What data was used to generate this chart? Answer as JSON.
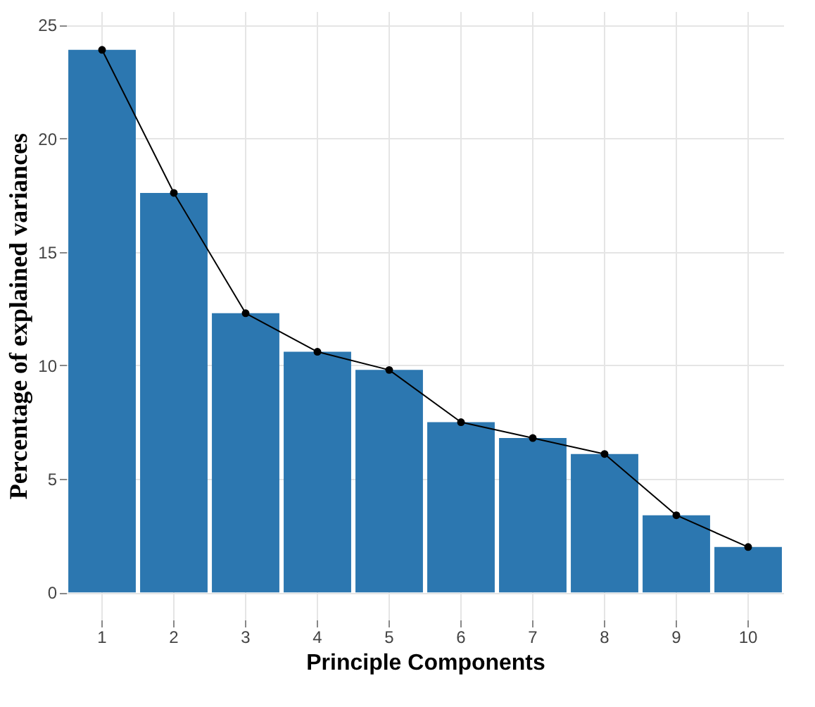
{
  "chart_data": {
    "type": "bar",
    "xlabel": "Principle Components",
    "ylabel": "Percentage of explained variances",
    "categories": [
      "1",
      "2",
      "3",
      "4",
      "5",
      "6",
      "7",
      "8",
      "9",
      "10"
    ],
    "series": [
      {
        "color": "#2c77b0",
        "values": [
          23.9,
          17.6,
          12.3,
          10.6,
          9.8,
          7.5,
          6.8,
          6.1,
          3.4,
          2.0
        ]
      },
      {
        "type": "line",
        "color": "#000000",
        "values": [
          23.9,
          17.6,
          12.3,
          10.6,
          9.8,
          7.5,
          6.8,
          6.1,
          3.4,
          2.0
        ]
      }
    ],
    "ylim": [
      -1.2,
      25.6
    ],
    "yticks": [
      0,
      5,
      10,
      15,
      20,
      25
    ],
    "grid": true,
    "marker": "circle",
    "line_style": "solid"
  }
}
